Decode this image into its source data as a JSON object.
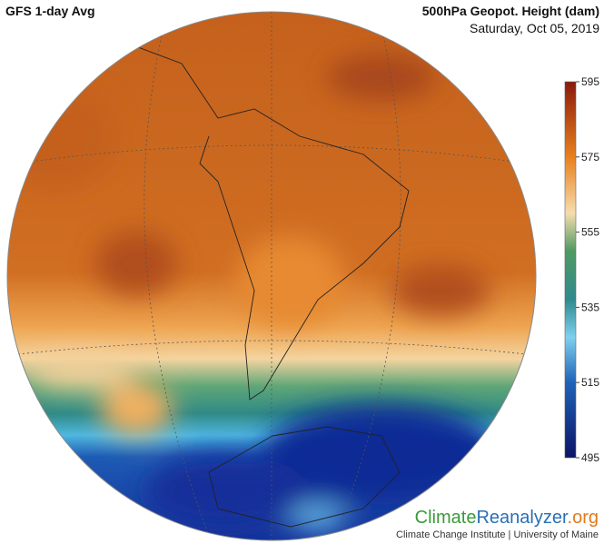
{
  "header": {
    "title": "GFS 1-day Avg",
    "variable": "500hPa Geopot. Height (dam)",
    "date": "Saturday, Oct 05, 2019"
  },
  "colorbar": {
    "ticks": [
      595,
      575,
      555,
      535,
      515,
      495
    ]
  },
  "footer": {
    "logo": [
      "Climate",
      "Reanalyzer",
      ".org"
    ],
    "credit": "Climate Change Institute | University of Maine"
  }
}
